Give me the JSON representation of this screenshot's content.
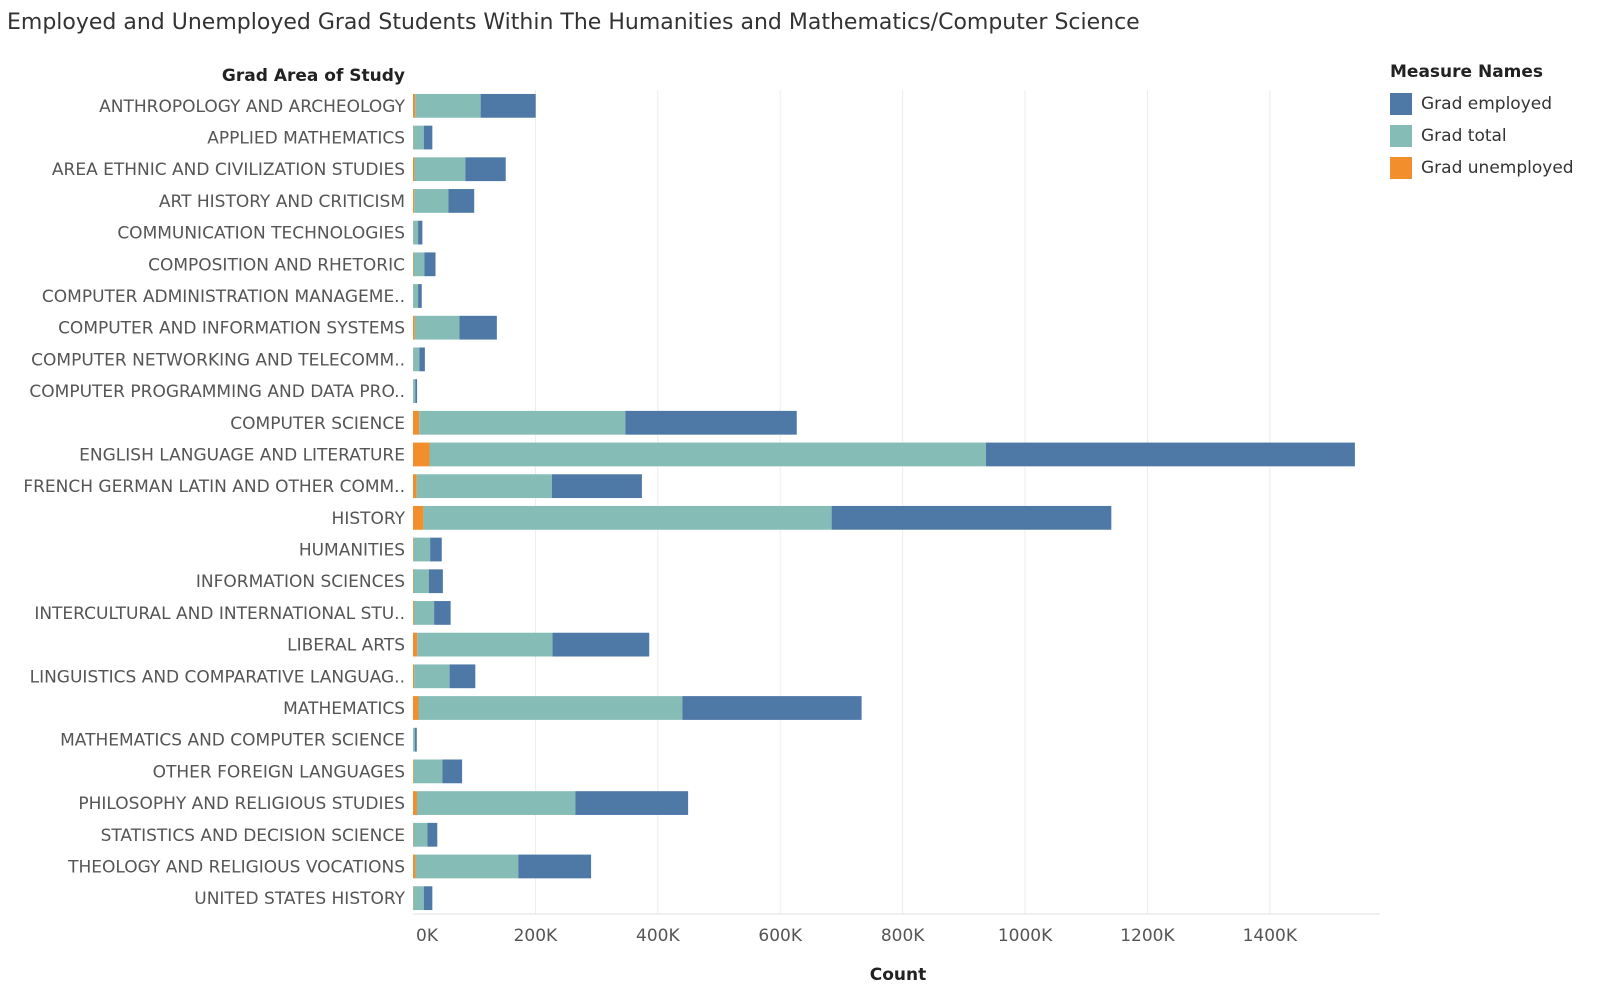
{
  "title": "Employed and Unemployed Grad Students Within The Humanities and Mathematics/Computer Science",
  "chart_data": {
    "type": "bar",
    "orientation": "horizontal",
    "stacked": true,
    "row_header": "Grad Area of Study",
    "xlabel": "Count",
    "xlim": [
      0,
      1580000
    ],
    "xticks": [
      0,
      200000,
      400000,
      600000,
      800000,
      1000000,
      1200000,
      1400000
    ],
    "xtick_labels": [
      "0K",
      "200K",
      "400K",
      "600K",
      "800K",
      "1000K",
      "1200K",
      "1400K"
    ],
    "grid": "vertical",
    "legend_position": "top-right",
    "categories": [
      "ANTHROPOLOGY AND ARCHEOLOGY",
      "APPLIED MATHEMATICS",
      "AREA ETHNIC AND CIVILIZATION STUDIES",
      "ART HISTORY AND CRITICISM",
      "COMMUNICATION TECHNOLOGIES",
      "COMPOSITION AND RHETORIC",
      "COMPUTER ADMINISTRATION MANAGEME..",
      "COMPUTER AND INFORMATION SYSTEMS",
      "COMPUTER NETWORKING AND TELECOMM..",
      "COMPUTER PROGRAMMING AND DATA PRO..",
      "COMPUTER SCIENCE",
      "ENGLISH LANGUAGE AND LITERATURE",
      "FRENCH GERMAN LATIN AND OTHER COMM..",
      "HISTORY",
      "HUMANITIES",
      "INFORMATION SCIENCES",
      "INTERCULTURAL AND INTERNATIONAL STU..",
      "LIBERAL ARTS",
      "LINGUISTICS AND COMPARATIVE LANGUAG..",
      "MATHEMATICS",
      "MATHEMATICS AND COMPUTER SCIENCE",
      "OTHER FOREIGN LANGUAGES",
      "PHILOSOPHY AND RELIGIOUS STUDIES",
      "STATISTICS AND DECISION SCIENCE",
      "THEOLOGY AND RELIGIOUS VOCATIONS",
      "UNITED STATES HISTORY"
    ],
    "series": [
      {
        "name": "Grad unemployed",
        "color": "#f28e2b",
        "values": [
          3500,
          600,
          2500,
          2000,
          300,
          800,
          300,
          3000,
          400,
          200,
          10000,
          27000,
          6000,
          17000,
          1000,
          800,
          1500,
          7000,
          1800,
          9000,
          200,
          1200,
          6500,
          700,
          4000,
          600
        ]
      },
      {
        "name": "Grad total",
        "color": "#86bcb6",
        "values": [
          107000,
          17000,
          83000,
          56000,
          8000,
          18000,
          8000,
          73000,
          10000,
          3500,
          337000,
          909000,
          221000,
          667000,
          27000,
          25000,
          33000,
          221000,
          58000,
          431000,
          3000,
          47000,
          259000,
          23000,
          168000,
          17000
        ]
      },
      {
        "name": "Grad employed",
        "color": "#4e79a7",
        "values": [
          90000,
          14000,
          66000,
          42000,
          7000,
          18000,
          6000,
          61000,
          9000,
          3000,
          280000,
          603000,
          147000,
          457000,
          19000,
          23000,
          27000,
          158000,
          42000,
          293000,
          3000,
          32000,
          184000,
          16000,
          119000,
          14000
        ]
      }
    ]
  },
  "legend": {
    "title": "Measure Names",
    "items": [
      {
        "label": "Grad employed",
        "color": "#4e79a7"
      },
      {
        "label": "Grad total",
        "color": "#86bcb6"
      },
      {
        "label": "Grad unemployed",
        "color": "#f28e2b"
      }
    ]
  }
}
